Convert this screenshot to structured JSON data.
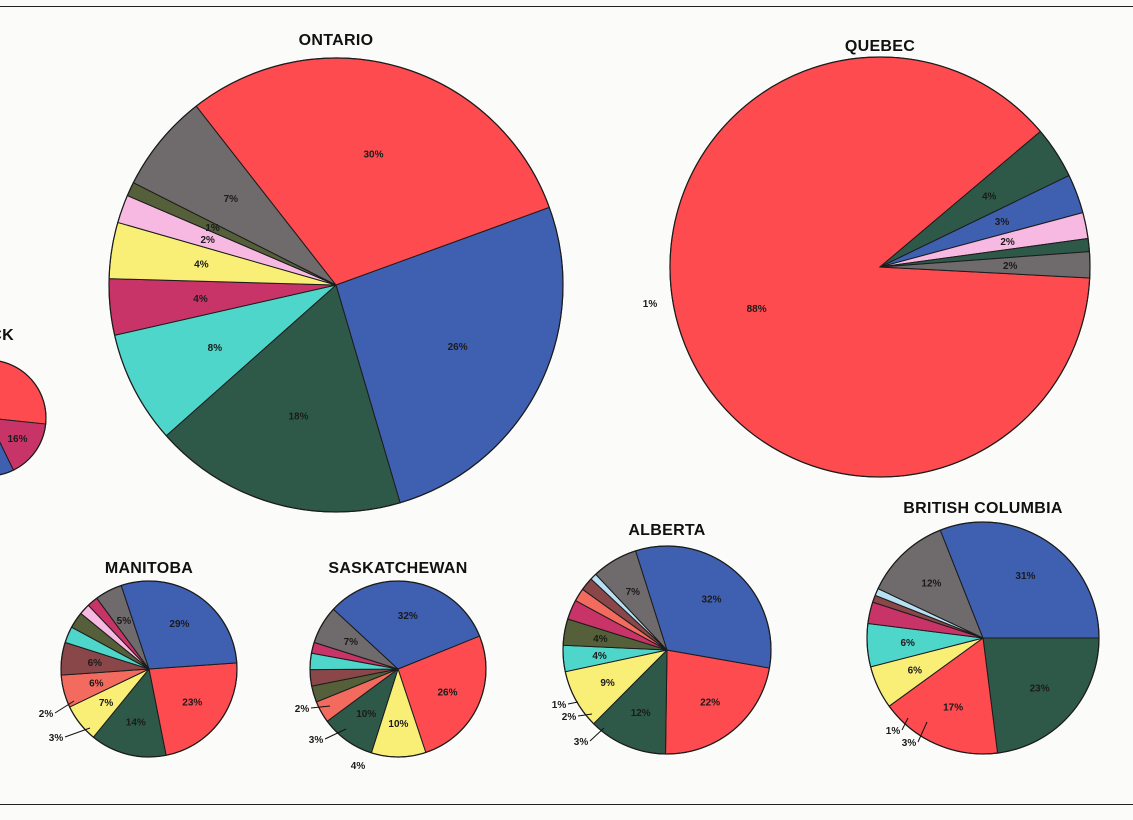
{
  "colors": {
    "red": "#fd4b4f",
    "blue": "#3f5fb0",
    "darkgreen": "#2e5949",
    "gray": "#6f6a6c",
    "olive": "#55603a",
    "pink": "#f7b9e2",
    "yellow": "#f9ef77",
    "magenta": "#c93468",
    "cyan": "#4fd6cb",
    "brown": "#8a4749",
    "salmon": "#f36b5f",
    "lightblue": "#b7e1f3"
  },
  "chart_data": [
    {
      "type": "pie",
      "title": "…SWICK",
      "partial": true,
      "slices": [
        {
          "label": "",
          "color": "red",
          "start_deg": 0,
          "sweep_deg": 96
        },
        {
          "label": "16%",
          "color": "magenta",
          "start_deg": 96,
          "sweep_deg": 58
        },
        {
          "label": "",
          "color": "blue",
          "start_deg": 154,
          "sweep_deg": 206
        }
      ]
    },
    {
      "type": "pie",
      "title": "ONTARIO",
      "slices": [
        {
          "label": "26%",
          "value": 26,
          "color": "blue"
        },
        {
          "label": "18%",
          "value": 18,
          "color": "darkgreen"
        },
        {
          "label": "8%",
          "value": 8,
          "color": "cyan"
        },
        {
          "label": "4%",
          "value": 4,
          "color": "magenta"
        },
        {
          "label": "4%",
          "value": 4,
          "color": "yellow"
        },
        {
          "label": "2%",
          "value": 2,
          "color": "pink"
        },
        {
          "label": "1%",
          "value": 1,
          "color": "olive"
        },
        {
          "label": "7%",
          "value": 7,
          "color": "gray"
        },
        {
          "label": "30%",
          "value": 30,
          "color": "red"
        }
      ]
    },
    {
      "type": "pie",
      "title": "QUEBEC",
      "slices": [
        {
          "label": "88%",
          "value": 88,
          "color": "red"
        },
        {
          "label": "4%",
          "value": 4,
          "color": "darkgreen"
        },
        {
          "label": "3%",
          "value": 3,
          "color": "blue"
        },
        {
          "label": "2%",
          "value": 2,
          "color": "pink"
        },
        {
          "label": "1%",
          "value": 1,
          "color": "darkgreen"
        },
        {
          "label": "2%",
          "value": 2,
          "color": "gray"
        }
      ]
    },
    {
      "type": "pie",
      "title": "MANITOBA",
      "slices": [
        {
          "label": "23%",
          "value": 23,
          "color": "red"
        },
        {
          "label": "14%",
          "value": 14,
          "color": "darkgreen"
        },
        {
          "label": "7%",
          "value": 7,
          "color": "yellow"
        },
        {
          "label": "6%",
          "value": 6,
          "color": "salmon"
        },
        {
          "label": "6%",
          "value": 6,
          "color": "brown"
        },
        {
          "label": "3%",
          "value": 3,
          "color": "cyan"
        },
        {
          "label": "",
          "value": 3,
          "color": "olive"
        },
        {
          "label": "2%",
          "value": 2,
          "color": "pink"
        },
        {
          "label": "",
          "value": 2,
          "color": "magenta"
        },
        {
          "label": "5%",
          "value": 5,
          "color": "gray"
        },
        {
          "label": "29%",
          "value": 29,
          "color": "blue"
        }
      ]
    },
    {
      "type": "pie",
      "title": "SASKATCHEWAN",
      "slices": [
        {
          "label": "26%",
          "value": 26,
          "color": "red"
        },
        {
          "label": "10%",
          "value": 10,
          "color": "yellow"
        },
        {
          "label": "10%",
          "value": 10,
          "color": "darkgreen"
        },
        {
          "label": "4%",
          "value": 4,
          "color": "salmon"
        },
        {
          "label": "",
          "value": 3,
          "color": "olive"
        },
        {
          "label": "3%",
          "value": 3,
          "color": "brown"
        },
        {
          "label": "",
          "value": 3,
          "color": "cyan"
        },
        {
          "label": "2%",
          "value": 2,
          "color": "magenta"
        },
        {
          "label": "7%",
          "value": 7,
          "color": "gray"
        },
        {
          "label": "32%",
          "value": 32,
          "color": "blue"
        }
      ]
    },
    {
      "type": "pie",
      "title": "ALBERTA",
      "slices": [
        {
          "label": "22%",
          "value": 22,
          "color": "red"
        },
        {
          "label": "12%",
          "value": 12,
          "color": "darkgreen"
        },
        {
          "label": "9%",
          "value": 9,
          "color": "yellow"
        },
        {
          "label": "4%",
          "value": 4,
          "color": "cyan"
        },
        {
          "label": "4%",
          "value": 4,
          "color": "olive"
        },
        {
          "label": "3%",
          "value": 3,
          "color": "magenta"
        },
        {
          "label": "",
          "value": 2,
          "color": "salmon"
        },
        {
          "label": "2%",
          "value": 2,
          "color": "brown"
        },
        {
          "label": "1%",
          "value": 1,
          "color": "lightblue"
        },
        {
          "label": "7%",
          "value": 7,
          "color": "gray"
        },
        {
          "label": "32%",
          "value": 32,
          "color": "blue"
        }
      ]
    },
    {
      "type": "pie",
      "title": "BRITISH COLUMBIA",
      "slices": [
        {
          "label": "23%",
          "value": 23,
          "color": "darkgreen"
        },
        {
          "label": "17%",
          "value": 17,
          "color": "red"
        },
        {
          "label": "6%",
          "value": 6,
          "color": "yellow"
        },
        {
          "label": "6%",
          "value": 6,
          "color": "cyan"
        },
        {
          "label": "3%",
          "value": 3,
          "color": "magenta"
        },
        {
          "label": "",
          "value": 1,
          "color": "brown"
        },
        {
          "label": "1%",
          "value": 1,
          "color": "lightblue"
        },
        {
          "label": "12%",
          "value": 12,
          "color": "gray"
        },
        {
          "label": "31%",
          "value": 31,
          "color": "blue"
        }
      ]
    }
  ]
}
